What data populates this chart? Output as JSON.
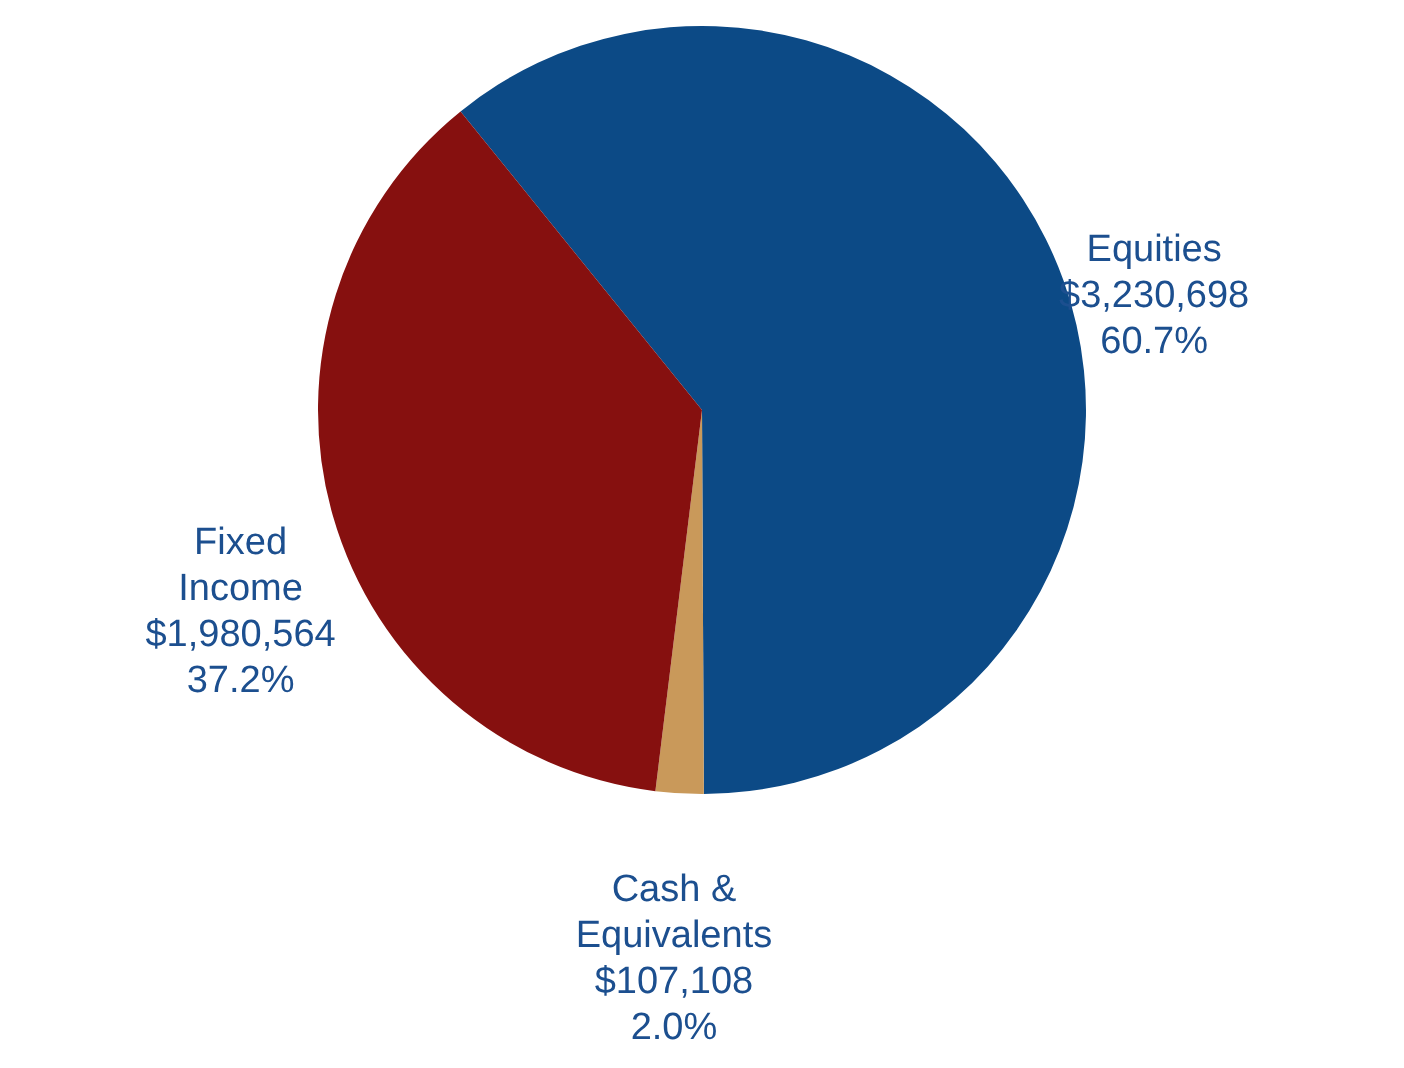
{
  "chart_data": {
    "type": "pie",
    "categories": [
      "Equities",
      "Cash & Equivalents",
      "Fixed Income"
    ],
    "values": [
      3230698,
      107108,
      1980564
    ],
    "colors": [
      "#0c4a86",
      "#c9995a",
      "#86100f"
    ],
    "value_labels": [
      "$3,230,698\n60.7%",
      "$107,108\n2.0%",
      "$1,980,564\n37.2%"
    ]
  }
}
